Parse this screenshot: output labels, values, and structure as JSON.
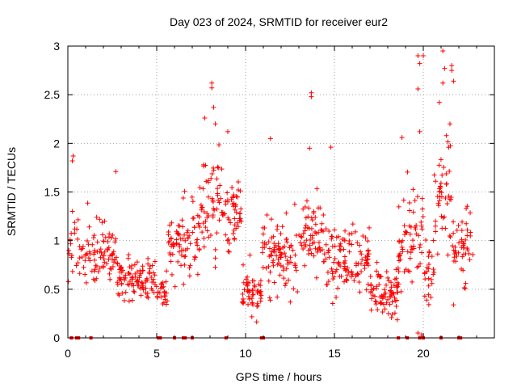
{
  "chart_data": {
    "type": "scatter",
    "title": "Day 023 of 2024, SRMTID for receiver eur2",
    "xlabel": "GPS time / hours",
    "ylabel": "SRMTID / TECUs",
    "xlim": [
      0,
      24
    ],
    "ylim": [
      0,
      3
    ],
    "x_ticks": [
      0,
      5,
      10,
      15,
      20
    ],
    "x_tick_labels": [
      "0",
      "5",
      "10",
      "15",
      "20"
    ],
    "y_ticks": [
      0,
      0.5,
      1,
      1.5,
      2,
      2.5,
      3
    ],
    "y_tick_labels": [
      "0",
      "0.5",
      "1",
      "1.5",
      "2",
      "2.5",
      "3"
    ],
    "grid": true,
    "marker": "+",
    "series": [
      {
        "name": "SRMTID",
        "color": "#ff0000",
        "segments": [
          {
            "x": [
              0.0,
              0.6
            ],
            "mean": 1.0,
            "spread": 0.35,
            "density": 30
          },
          {
            "x": [
              0.6,
              1.2
            ],
            "mean": 0.85,
            "spread": 0.3,
            "density": 30
          },
          {
            "x": [
              1.2,
              2.8
            ],
            "mean": 0.85,
            "spread": 0.25,
            "density": 45
          },
          {
            "x": [
              2.8,
              5.0
            ],
            "mean": 0.6,
            "spread": 0.2,
            "density": 45
          },
          {
            "x": [
              5.0,
              5.6
            ],
            "mean": 0.45,
            "spread": 0.15,
            "density": 40
          },
          {
            "x": [
              5.6,
              7.4
            ],
            "mean": 1.0,
            "spread": 0.3,
            "density": 45
          },
          {
            "x": [
              7.4,
              8.6
            ],
            "mean": 1.35,
            "spread": 0.45,
            "density": 45
          },
          {
            "x": [
              8.6,
              9.8
            ],
            "mean": 1.25,
            "spread": 0.3,
            "density": 45
          },
          {
            "x": [
              9.8,
              10.9
            ],
            "mean": 0.45,
            "spread": 0.2,
            "density": 50
          },
          {
            "x": [
              10.9,
              13.0
            ],
            "mean": 0.85,
            "spread": 0.3,
            "density": 45
          },
          {
            "x": [
              13.0,
              14.4
            ],
            "mean": 1.0,
            "spread": 0.3,
            "density": 45
          },
          {
            "x": [
              14.4,
              17.0
            ],
            "mean": 0.8,
            "spread": 0.28,
            "density": 45
          },
          {
            "x": [
              17.0,
              18.6
            ],
            "mean": 0.45,
            "spread": 0.2,
            "density": 50
          },
          {
            "x": [
              18.6,
              20.0
            ],
            "mean": 0.95,
            "spread": 0.45,
            "density": 45
          },
          {
            "x": [
              20.0,
              20.6
            ],
            "mean": 0.7,
            "spread": 0.25,
            "density": 40
          },
          {
            "x": [
              20.6,
              21.6
            ],
            "mean": 1.45,
            "spread": 0.5,
            "density": 45
          },
          {
            "x": [
              21.6,
              22.8
            ],
            "mean": 0.95,
            "spread": 0.3,
            "density": 40
          }
        ],
        "outliers": [
          {
            "x": 0.3,
            "y": 1.87
          },
          {
            "x": 0.25,
            "y": 1.82
          },
          {
            "x": 2.7,
            "y": 1.71
          },
          {
            "x": 7.7,
            "y": 2.26
          },
          {
            "x": 8.1,
            "y": 2.62
          },
          {
            "x": 8.1,
            "y": 2.57
          },
          {
            "x": 8.2,
            "y": 2.37
          },
          {
            "x": 8.3,
            "y": 2.2
          },
          {
            "x": 9.0,
            "y": 2.12
          },
          {
            "x": 11.4,
            "y": 2.05
          },
          {
            "x": 13.7,
            "y": 2.52
          },
          {
            "x": 13.7,
            "y": 2.48
          },
          {
            "x": 13.6,
            "y": 1.95
          },
          {
            "x": 14.8,
            "y": 1.96
          },
          {
            "x": 18.8,
            "y": 2.06
          },
          {
            "x": 19.7,
            "y": 2.9
          },
          {
            "x": 19.8,
            "y": 2.82
          },
          {
            "x": 19.7,
            "y": 2.56
          },
          {
            "x": 19.8,
            "y": 2.12
          },
          {
            "x": 20.9,
            "y": 2.42
          },
          {
            "x": 21.1,
            "y": 2.95
          },
          {
            "x": 21.2,
            "y": 2.77
          },
          {
            "x": 21.1,
            "y": 2.62
          },
          {
            "x": 21.6,
            "y": 2.8
          },
          {
            "x": 21.6,
            "y": 2.75
          },
          {
            "x": 21.7,
            "y": 2.64
          },
          {
            "x": 21.5,
            "y": 2.2
          },
          {
            "x": 21.3,
            "y": 2.08
          },
          {
            "x": 21.7,
            "y": 0.34
          },
          {
            "x": 19.7,
            "y": 0.05
          },
          {
            "x": 19.9,
            "y": 0.03
          },
          {
            "x": 20.0,
            "y": 2.9
          }
        ],
        "zeros_x": [
          0.2,
          0.2,
          0.5,
          0.6,
          1.3,
          5.1,
          5.2,
          6.0,
          6.5,
          6.6,
          7.0,
          8.9,
          10.9,
          11.0,
          18.6,
          19.1,
          19.8,
          20.0,
          21.0,
          22.0,
          22.1
        ]
      }
    ]
  }
}
